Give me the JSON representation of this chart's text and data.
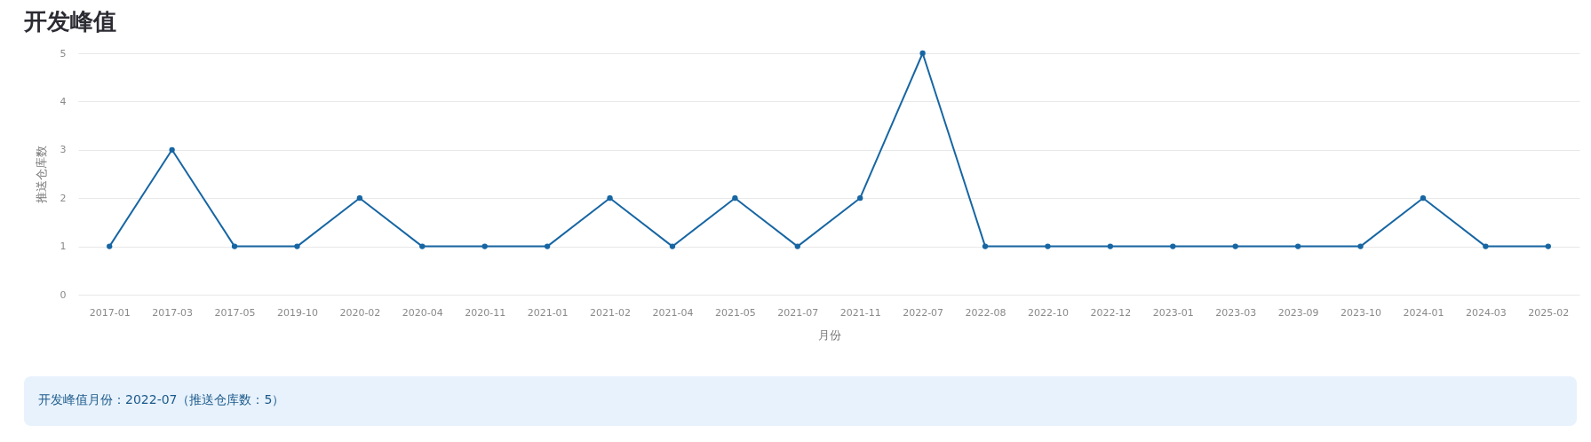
{
  "chart_data": {
    "type": "line",
    "title": "开发峰值",
    "xlabel": "月份",
    "ylabel": "推送仓库数",
    "categories": [
      "2017-01",
      "2017-03",
      "2017-05",
      "2019-10",
      "2020-02",
      "2020-04",
      "2020-11",
      "2021-01",
      "2021-02",
      "2021-04",
      "2021-05",
      "2021-07",
      "2021-11",
      "2022-07",
      "2022-08",
      "2022-10",
      "2022-12",
      "2023-01",
      "2023-03",
      "2023-09",
      "2023-10",
      "2024-01",
      "2024-03",
      "2025-02"
    ],
    "series": [
      {
        "color": "#1766a3",
        "values": [
          1,
          3,
          1,
          1,
          2,
          1,
          1,
          1,
          2,
          1,
          2,
          1,
          2,
          5,
          1,
          1,
          1,
          1,
          1,
          1,
          1,
          2,
          1,
          1
        ]
      }
    ],
    "ylim": [
      0,
      5
    ],
    "yticks": [
      0,
      1,
      2,
      3,
      4,
      5
    ],
    "grid": "y",
    "marker": "circle",
    "line_style": "solid",
    "annotations": [
      "开发峰值月份：2022-07（推送仓库数：5）"
    ]
  }
}
